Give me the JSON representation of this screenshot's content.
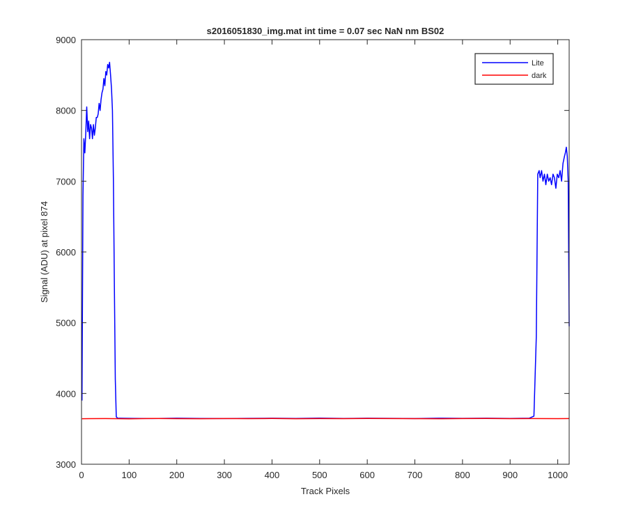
{
  "chart_data": {
    "type": "line",
    "title": "s2016051830_img.mat int time = 0.07 sec  NaN nm BS02",
    "xlabel": "Track Pixels",
    "ylabel": "Signal (ADU) at pixel 874",
    "xlim": [
      0,
      1024
    ],
    "ylim": [
      3000,
      9000
    ],
    "xticks": [
      0,
      100,
      200,
      300,
      400,
      500,
      600,
      700,
      800,
      900,
      1000
    ],
    "yticks": [
      3000,
      4000,
      5000,
      6000,
      7000,
      8000,
      9000
    ],
    "grid": false,
    "legend_position": "top-right",
    "series": [
      {
        "name": "Lite",
        "color": "#0000ff",
        "x": [
          1,
          3,
          5,
          7,
          9,
          11,
          13,
          15,
          17,
          19,
          21,
          23,
          25,
          27,
          29,
          31,
          33,
          35,
          37,
          39,
          41,
          43,
          45,
          47,
          49,
          51,
          53,
          55,
          57,
          59,
          61,
          63,
          65,
          67,
          69,
          71,
          73,
          76,
          80,
          100,
          150,
          200,
          250,
          300,
          350,
          400,
          450,
          500,
          550,
          600,
          650,
          700,
          750,
          800,
          850,
          900,
          940,
          950,
          955,
          958,
          961,
          963,
          966,
          969,
          972,
          975,
          978,
          981,
          984,
          987,
          990,
          993,
          996,
          999,
          1002,
          1005,
          1008,
          1011,
          1014,
          1016,
          1018,
          1020,
          1022,
          1024
        ],
        "y": [
          3900,
          6800,
          7600,
          7400,
          7700,
          8050,
          7700,
          7850,
          7600,
          7800,
          7750,
          7600,
          7800,
          7650,
          7750,
          7900,
          7900,
          7950,
          8100,
          8000,
          8150,
          8250,
          8300,
          8450,
          8350,
          8550,
          8500,
          8650,
          8600,
          8680,
          8500,
          8300,
          8000,
          7000,
          5500,
          4200,
          3670,
          3650,
          3650,
          3648,
          3645,
          3650,
          3646,
          3645,
          3648,
          3650,
          3647,
          3652,
          3646,
          3650,
          3648,
          3645,
          3650,
          3648,
          3650,
          3646,
          3650,
          3680,
          4800,
          7100,
          7150,
          7050,
          7150,
          7000,
          7100,
          6950,
          7100,
          7000,
          7050,
          6950,
          7100,
          7050,
          6900,
          7100,
          7050,
          7150,
          7000,
          7250,
          7350,
          7400,
          7480,
          7350,
          7000,
          4950
        ]
      },
      {
        "name": "dark",
        "color": "#ff0000",
        "x": [
          1,
          50,
          100,
          150,
          200,
          250,
          300,
          350,
          400,
          450,
          500,
          550,
          600,
          650,
          700,
          750,
          800,
          850,
          900,
          950,
          1000,
          1024
        ],
        "y": [
          3643,
          3645,
          3642,
          3646,
          3644,
          3643,
          3645,
          3644,
          3646,
          3643,
          3645,
          3644,
          3646,
          3645,
          3644,
          3643,
          3645,
          3646,
          3644,
          3645,
          3644,
          3645
        ]
      }
    ]
  }
}
